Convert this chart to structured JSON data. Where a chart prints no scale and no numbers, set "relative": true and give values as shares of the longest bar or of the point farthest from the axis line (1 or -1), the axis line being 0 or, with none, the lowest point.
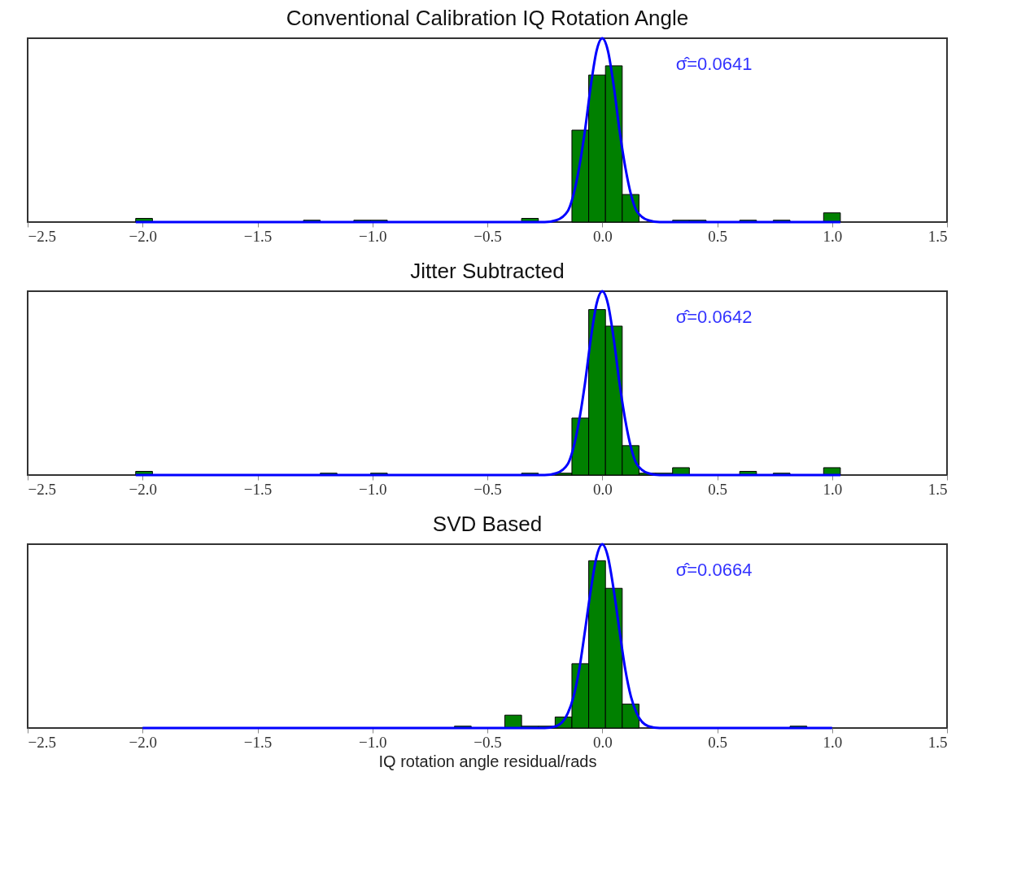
{
  "chart_data": [
    {
      "type": "histogram",
      "title": "Conventional Calibration IQ Rotation Angle",
      "relative": true,
      "grid": false,
      "tick_labels": "x",
      "xlim": [
        -2.5,
        1.5
      ],
      "xticks": [
        {
          "value": -2.5,
          "label": "−2.5"
        },
        {
          "value": -2.0,
          "label": "−2.0"
        },
        {
          "value": -1.5,
          "label": "−1.5"
        },
        {
          "value": -1.0,
          "label": "−1.0"
        },
        {
          "value": -0.5,
          "label": "−0.5"
        },
        {
          "value": 0,
          "label": "0.0"
        },
        {
          "value": 0.5,
          "label": "0.5"
        },
        {
          "value": 1.0,
          "label": "1.0"
        },
        {
          "value": 1.5,
          "label": "1.5"
        }
      ],
      "annotations": [
        "σ̂=0.0641"
      ],
      "bins": [
        -2.03,
        -1.957,
        -1.884,
        -1.811,
        -1.738,
        -1.665,
        -1.592,
        -1.519,
        -1.446,
        -1.373,
        -1.3,
        -1.227,
        -1.154,
        -1.081,
        -1.008,
        -0.935,
        -0.862,
        -0.789,
        -0.716,
        -0.643,
        -0.57,
        -0.497,
        -0.424,
        -0.351,
        -0.278,
        -0.205,
        -0.132,
        -0.059,
        0.014,
        0.087,
        0.16,
        0.233,
        0.306,
        0.379,
        0.452,
        0.525,
        0.598,
        0.671,
        0.744,
        0.817,
        0.89,
        0.963,
        1.036
      ],
      "series": [
        {
          "type": "histogram",
          "color": "#008000",
          "values": [
            0.02,
            0,
            0,
            0,
            0,
            0,
            0,
            0,
            0,
            0,
            0.01,
            0,
            0,
            0.01,
            0.01,
            0,
            0,
            0,
            0,
            0,
            0,
            0,
            0,
            0.02,
            0,
            0,
            0.5,
            0.8,
            0.85,
            0.15,
            0,
            0,
            0.01,
            0.01,
            0,
            0,
            0.01,
            0,
            0.01,
            0,
            0,
            0.05
          ]
        },
        {
          "type": "line",
          "color": "#0000ff",
          "x": [
            -2.03,
            -0.25,
            -0.2,
            -0.15,
            -0.125,
            -0.1,
            -0.075,
            -0.05,
            -0.025,
            0,
            0.025,
            0.05,
            0.075,
            0.1,
            0.125,
            0.15,
            0.2,
            0.25,
            1.036
          ],
          "values": [
            0,
            0,
            0.01,
            0.06,
            0.15,
            0.3,
            0.5,
            0.74,
            0.93,
            1,
            0.93,
            0.74,
            0.5,
            0.3,
            0.15,
            0.06,
            0.01,
            0,
            0
          ]
        }
      ]
    },
    {
      "type": "histogram",
      "title": "Jitter Subtracted",
      "relative": true,
      "grid": false,
      "tick_labels": "x",
      "xlim": [
        -2.5,
        1.5
      ],
      "xticks": [
        {
          "value": -2.5,
          "label": "−2.5"
        },
        {
          "value": -2.0,
          "label": "−2.0"
        },
        {
          "value": -1.5,
          "label": "−1.5"
        },
        {
          "value": -1.0,
          "label": "−1.0"
        },
        {
          "value": -0.5,
          "label": "−0.5"
        },
        {
          "value": 0,
          "label": "0.0"
        },
        {
          "value": 0.5,
          "label": "0.5"
        },
        {
          "value": 1.0,
          "label": "1.0"
        },
        {
          "value": 1.5,
          "label": "1.5"
        }
      ],
      "annotations": [
        "σ̂=0.0642"
      ],
      "bins": [
        -2.03,
        -1.957,
        -1.884,
        -1.811,
        -1.738,
        -1.665,
        -1.592,
        -1.519,
        -1.446,
        -1.373,
        -1.3,
        -1.227,
        -1.154,
        -1.081,
        -1.008,
        -0.935,
        -0.862,
        -0.789,
        -0.716,
        -0.643,
        -0.57,
        -0.497,
        -0.424,
        -0.351,
        -0.278,
        -0.205,
        -0.132,
        -0.059,
        0.014,
        0.087,
        0.16,
        0.233,
        0.306,
        0.379,
        0.452,
        0.525,
        0.598,
        0.671,
        0.744,
        0.817,
        0.89,
        0.963,
        1.036
      ],
      "series": [
        {
          "type": "histogram",
          "color": "#008000",
          "values": [
            0.02,
            0,
            0,
            0,
            0,
            0,
            0,
            0,
            0,
            0,
            0,
            0.01,
            0,
            0,
            0.01,
            0,
            0,
            0,
            0,
            0,
            0,
            0,
            0,
            0.01,
            0,
            0.01,
            0.31,
            0.9,
            0.81,
            0.16,
            0.01,
            0.01,
            0.04,
            0,
            0,
            0,
            0.02,
            0,
            0.01,
            0,
            0,
            0.04
          ]
        },
        {
          "type": "line",
          "color": "#0000ff",
          "x": [
            -2.03,
            -0.25,
            -0.2,
            -0.15,
            -0.125,
            -0.1,
            -0.075,
            -0.05,
            -0.025,
            0,
            0.025,
            0.05,
            0.075,
            0.1,
            0.125,
            0.15,
            0.2,
            0.25,
            1.036
          ],
          "values": [
            0,
            0,
            0.01,
            0.06,
            0.15,
            0.3,
            0.5,
            0.74,
            0.93,
            1,
            0.93,
            0.74,
            0.5,
            0.3,
            0.15,
            0.06,
            0.01,
            0,
            0
          ]
        }
      ]
    },
    {
      "type": "histogram",
      "title": "SVD Based",
      "xlabel": "IQ rotation angle residual/rads",
      "relative": true,
      "grid": false,
      "tick_labels": "x",
      "xlim": [
        -2.5,
        1.5
      ],
      "xticks": [
        {
          "value": -2.5,
          "label": "−2.5"
        },
        {
          "value": -2.0,
          "label": "−2.0"
        },
        {
          "value": -1.5,
          "label": "−1.5"
        },
        {
          "value": -1.0,
          "label": "−1.0"
        },
        {
          "value": -0.5,
          "label": "−0.5"
        },
        {
          "value": 0,
          "label": "0.0"
        },
        {
          "value": 0.5,
          "label": "0.5"
        },
        {
          "value": 1.0,
          "label": "1.0"
        },
        {
          "value": 1.5,
          "label": "1.5"
        }
      ],
      "annotations": [
        "σ̂=0.0664"
      ],
      "bins": [
        -2.03,
        -1.957,
        -1.884,
        -1.811,
        -1.738,
        -1.665,
        -1.592,
        -1.519,
        -1.446,
        -1.373,
        -1.3,
        -1.227,
        -1.154,
        -1.081,
        -1.008,
        -0.935,
        -0.862,
        -0.789,
        -0.716,
        -0.643,
        -0.57,
        -0.497,
        -0.424,
        -0.351,
        -0.278,
        -0.205,
        -0.132,
        -0.059,
        0.014,
        0.087,
        0.16,
        0.233,
        0.306,
        0.379,
        0.452,
        0.525,
        0.598,
        0.671,
        0.744,
        0.817,
        0.89,
        0.963,
        1.036
      ],
      "series": [
        {
          "type": "histogram",
          "color": "#008000",
          "values": [
            0,
            0,
            0,
            0,
            0,
            0,
            0,
            0,
            0,
            0,
            0,
            0,
            0,
            0,
            0,
            0,
            0,
            0,
            0,
            0.01,
            0,
            0,
            0.07,
            0.01,
            0.01,
            0.06,
            0.35,
            0.91,
            0.76,
            0.13,
            0,
            0,
            0,
            0,
            0,
            0,
            0,
            0,
            0,
            0.01,
            0,
            0
          ]
        },
        {
          "type": "line",
          "color": "#0000ff",
          "x": [
            -2.0,
            -0.25,
            -0.2,
            -0.15,
            -0.125,
            -0.1,
            -0.075,
            -0.05,
            -0.025,
            0,
            0.025,
            0.05,
            0.075,
            0.1,
            0.125,
            0.15,
            0.2,
            0.25,
            1.0
          ],
          "values": [
            0,
            0,
            0.01,
            0.08,
            0.17,
            0.32,
            0.53,
            0.75,
            0.93,
            1,
            0.93,
            0.75,
            0.53,
            0.32,
            0.17,
            0.08,
            0.01,
            0,
            0
          ]
        }
      ]
    }
  ]
}
